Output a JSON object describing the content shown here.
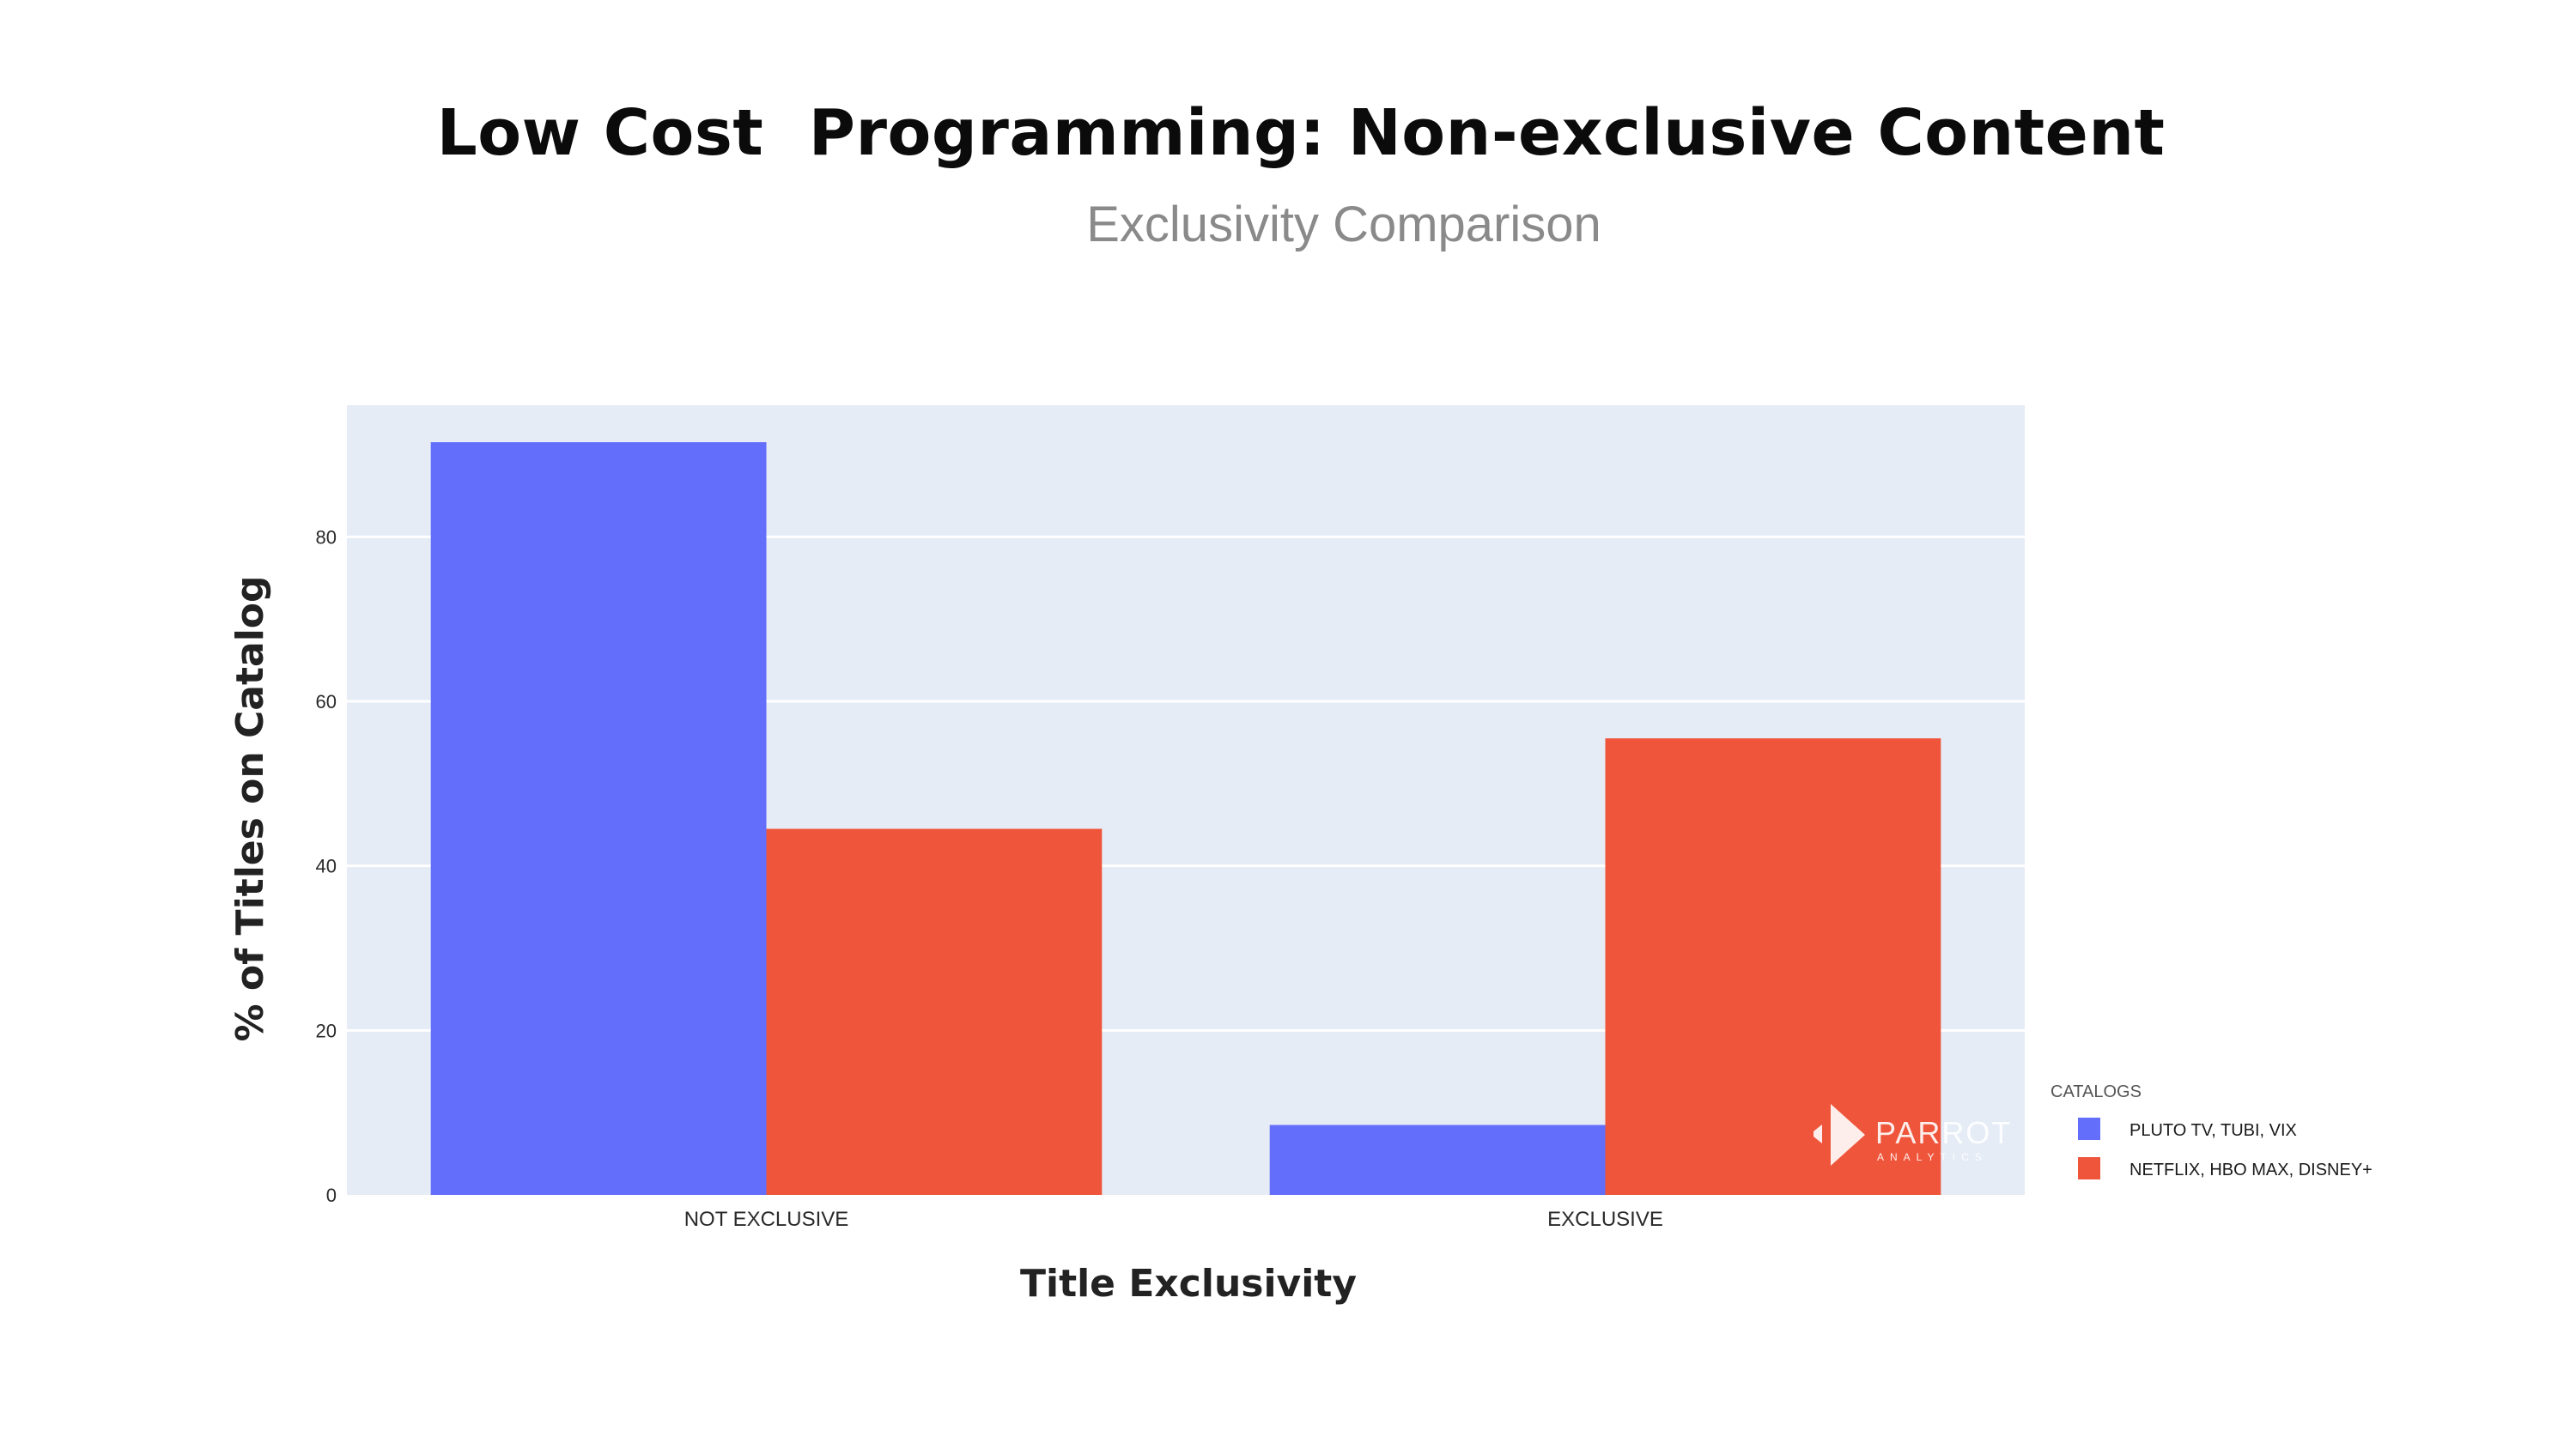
{
  "title": "Low Cost  Programming: Non-exclusive Content",
  "subtitle": "Exclusivity Comparison",
  "watermark": {
    "brand": "PARROT",
    "sub": "ANALYTICS"
  },
  "chart_data": {
    "type": "bar",
    "categories": [
      "NOT EXCLUSIVE",
      "EXCLUSIVE"
    ],
    "series": [
      {
        "name": "PLUTO TV, TUBI, VIX",
        "values": [
          91.5,
          8.5
        ],
        "color": "#636efa"
      },
      {
        "name": "NETFLIX, HBO MAX, DISNEY+",
        "values": [
          44.5,
          55.5
        ],
        "color": "#ef553b"
      }
    ],
    "xlabel": "Title Exclusivity",
    "ylabel": "% of Titles on Catalog",
    "ylim": [
      0,
      96
    ],
    "yticks": [
      0,
      20,
      40,
      60,
      80
    ],
    "grid": true,
    "plot_background": "#e5ecf6",
    "legend": {
      "title": "CATALOGS",
      "position": "right"
    }
  }
}
